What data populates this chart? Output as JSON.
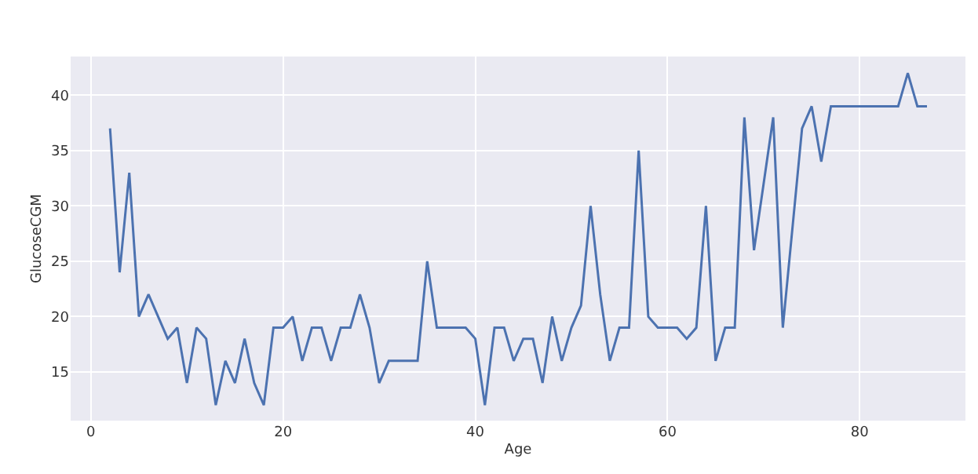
{
  "chart_data": {
    "type": "line",
    "xlabel": "Age",
    "ylabel": "GlucoseCGM",
    "x": [
      2,
      3,
      4,
      5,
      6,
      7,
      8,
      9,
      10,
      11,
      12,
      13,
      14,
      15,
      16,
      17,
      18,
      19,
      20,
      21,
      22,
      23,
      24,
      25,
      26,
      27,
      28,
      29,
      30,
      31,
      32,
      33,
      34,
      35,
      36,
      37,
      38,
      39,
      40,
      41,
      42,
      43,
      44,
      45,
      46,
      47,
      48,
      49,
      50,
      51,
      52,
      53,
      54,
      55,
      56,
      57,
      58,
      59,
      60,
      61,
      62,
      63,
      64,
      65,
      66,
      67,
      68,
      69,
      70,
      71,
      72,
      73,
      74,
      75,
      76,
      77,
      78,
      79,
      80,
      81,
      82,
      83,
      84,
      85,
      86,
      87
    ],
    "series": [
      {
        "color": "#4c72b0",
        "values": [
          37,
          24,
          33,
          20,
          22,
          20,
          18,
          19,
          14,
          19,
          18,
          12,
          16,
          14,
          18,
          14,
          12,
          19,
          19,
          20,
          16,
          19,
          19,
          16,
          19,
          19,
          22,
          19,
          14,
          16,
          16,
          16,
          16,
          25,
          19,
          19,
          19,
          19,
          18,
          12,
          19,
          19,
          16,
          18,
          18,
          14,
          20,
          16,
          19,
          21,
          30,
          22,
          16,
          19,
          19,
          35,
          20,
          19,
          19,
          19,
          18,
          19,
          30,
          16,
          19,
          19,
          38,
          26,
          32,
          38,
          19,
          28,
          37,
          39,
          34,
          39,
          39,
          39,
          39,
          39,
          39,
          39,
          39,
          42,
          39,
          39
        ]
      }
    ],
    "xlim": [
      -2.1,
      91
    ],
    "xticks": [
      0,
      20,
      40,
      60,
      80
    ],
    "ylim": [
      10.6,
      43.5
    ],
    "yticks": [
      15,
      20,
      25,
      30,
      35,
      40
    ],
    "grid": true,
    "marker": "none",
    "line_style": "solid"
  }
}
